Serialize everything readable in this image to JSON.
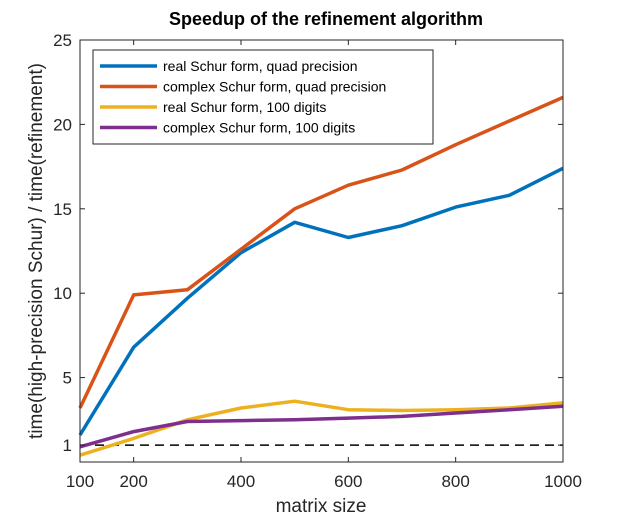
{
  "chart_data": {
    "type": "line",
    "title": "Speedup of the refinement algorithm",
    "xlabel": "matrix size",
    "ylabel": "time(high-precision Schur) / time(refinement)",
    "xlim": [
      100,
      1000
    ],
    "ylim": [
      0,
      25
    ],
    "xticks": [
      100,
      200,
      400,
      600,
      800,
      1000
    ],
    "yticks": [
      1,
      5,
      10,
      15,
      20,
      25
    ],
    "x": [
      100,
      200,
      300,
      400,
      500,
      600,
      700,
      800,
      900,
      1000
    ],
    "reference_line": {
      "y": 1,
      "style": "dashed",
      "color": "#000000"
    },
    "legend_position": "top-left",
    "series": [
      {
        "name": "real Schur form, quad precision",
        "color": "#0072BD",
        "values": [
          1.6,
          6.8,
          9.7,
          12.4,
          14.2,
          13.3,
          14.0,
          15.1,
          15.8,
          17.4
        ]
      },
      {
        "name": "complex Schur form, quad precision",
        "color": "#D95319",
        "values": [
          3.2,
          9.9,
          10.2,
          12.6,
          15.0,
          16.4,
          17.3,
          18.8,
          20.2,
          21.6
        ]
      },
      {
        "name": "real Schur form, 100 digits",
        "color": "#EDB120",
        "values": [
          0.4,
          1.4,
          2.5,
          3.2,
          3.6,
          3.1,
          3.05,
          3.1,
          3.2,
          3.5
        ]
      },
      {
        "name": "complex Schur form, 100 digits",
        "color": "#7E2F8E",
        "values": [
          0.9,
          1.8,
          2.4,
          2.45,
          2.5,
          2.6,
          2.7,
          2.9,
          3.1,
          3.3
        ]
      }
    ]
  }
}
